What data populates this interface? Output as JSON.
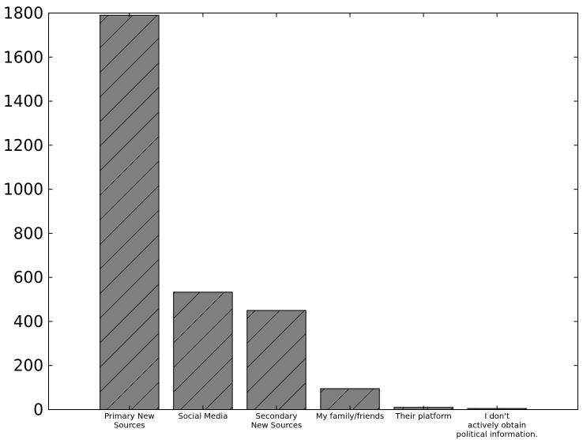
{
  "chart_data": {
    "type": "bar",
    "categories": [
      [
        "Primary New",
        "Sources"
      ],
      [
        "Social Media"
      ],
      [
        "Secondary",
        "New Sources"
      ],
      [
        "My family/friends"
      ],
      [
        "Their platform"
      ],
      [
        "I don't",
        "actively obtain",
        "political information."
      ]
    ],
    "values": [
      1790,
      533,
      450,
      95,
      10,
      5
    ],
    "ylim": [
      0,
      1800
    ],
    "yticks": [
      0,
      200,
      400,
      600,
      800,
      1000,
      1200,
      1400,
      1600,
      1800
    ],
    "bar_color": "#808080",
    "hatch": "diagonal",
    "grid": false,
    "title": "",
    "xlabel": "",
    "ylabel": ""
  }
}
